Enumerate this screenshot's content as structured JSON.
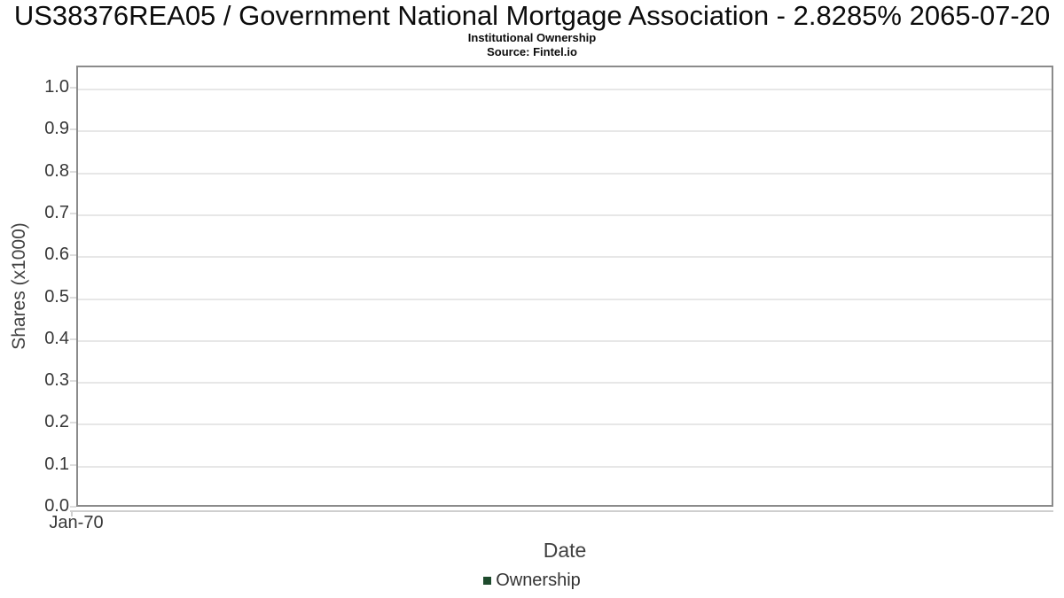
{
  "chart_data": {
    "type": "bar",
    "title": "US38376REA05 / Government National Mortgage Association - 2.8285% 2065-07-20",
    "subtitle": "Institutional Ownership",
    "source": "Source: Fintel.io",
    "xlabel": "Date",
    "ylabel": "Shares (x1000)",
    "xticks": [
      "Jan-70"
    ],
    "yticks": [
      0.0,
      0.1,
      0.2,
      0.3,
      0.4,
      0.5,
      0.6,
      0.7,
      0.8,
      0.9,
      1.0
    ],
    "ylim": [
      0.0,
      1.057
    ],
    "grid": true,
    "legend_position": "bottom",
    "series": [
      {
        "name": "Ownership",
        "color": "#1e4b2d",
        "x": [],
        "values": []
      }
    ],
    "colors": {
      "plot_border": "#8b8b8b",
      "gridline": "#e7e7e7",
      "y_tick": "#dedede",
      "axis_line": "#cfcfcf",
      "tick_label": "#373737",
      "axis_title": "#414141",
      "title_text": "#0c0c0c",
      "legend_text": "#343434"
    }
  }
}
